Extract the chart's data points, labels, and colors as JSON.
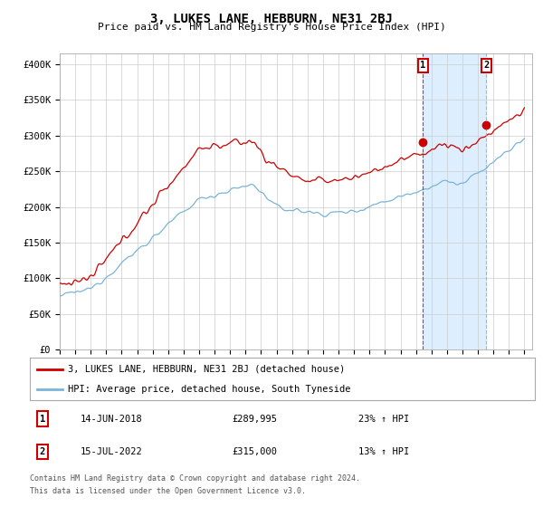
{
  "title": "3, LUKES LANE, HEBBURN, NE31 2BJ",
  "subtitle": "Price paid vs. HM Land Registry's House Price Index (HPI)",
  "ylabel_ticks": [
    "£0",
    "£50K",
    "£100K",
    "£150K",
    "£200K",
    "£250K",
    "£300K",
    "£350K",
    "£400K"
  ],
  "ytick_values": [
    0,
    50000,
    100000,
    150000,
    200000,
    250000,
    300000,
    350000,
    400000
  ],
  "ylim": [
    0,
    415000
  ],
  "xlim_start": 1995.0,
  "xlim_end": 2025.5,
  "hpi_color": "#7ab4d8",
  "price_color": "#cc0000",
  "shade_color": "#ddeeff",
  "sale1_x": 2018.45,
  "sale1_y": 289995,
  "sale2_x": 2022.54,
  "sale2_y": 315000,
  "sale1_label": "14-JUN-2018",
  "sale1_price": "£289,995",
  "sale1_hpi": "23% ↑ HPI",
  "sale2_label": "15-JUL-2022",
  "sale2_price": "£315,000",
  "sale2_hpi": "13% ↑ HPI",
  "legend_line1": "3, LUKES LANE, HEBBURN, NE31 2BJ (detached house)",
  "legend_line2": "HPI: Average price, detached house, South Tyneside",
  "footer1": "Contains HM Land Registry data © Crown copyright and database right 2024.",
  "footer2": "This data is licensed under the Open Government Licence v3.0.",
  "xtick_years": [
    1995,
    1996,
    1997,
    1998,
    1999,
    2000,
    2001,
    2002,
    2003,
    2004,
    2005,
    2006,
    2007,
    2008,
    2009,
    2010,
    2011,
    2012,
    2013,
    2014,
    2015,
    2016,
    2017,
    2018,
    2019,
    2020,
    2021,
    2022,
    2023,
    2024,
    2025
  ],
  "background_color": "#ffffff",
  "grid_color": "#cccccc"
}
